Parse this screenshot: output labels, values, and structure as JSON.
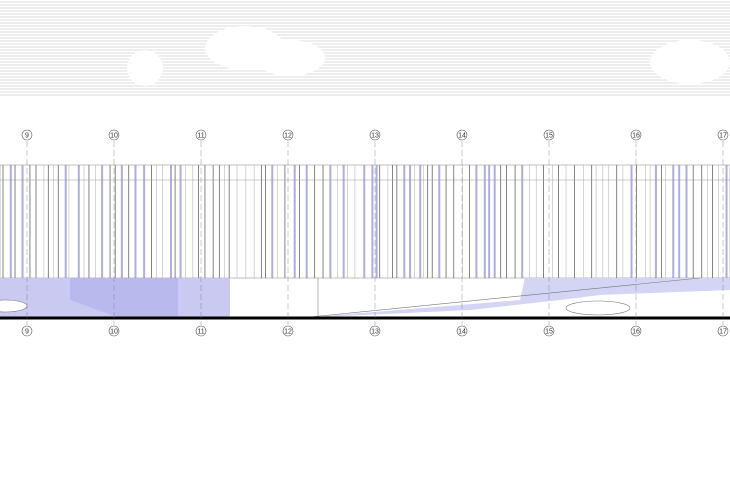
{
  "top_grid": [
    "9",
    "10",
    "11",
    "12",
    "13",
    "14",
    "15",
    "16",
    "17"
  ],
  "bottom_grid": [
    "9",
    "10",
    "11",
    "12",
    "13",
    "14",
    "15",
    "16",
    "17"
  ]
}
